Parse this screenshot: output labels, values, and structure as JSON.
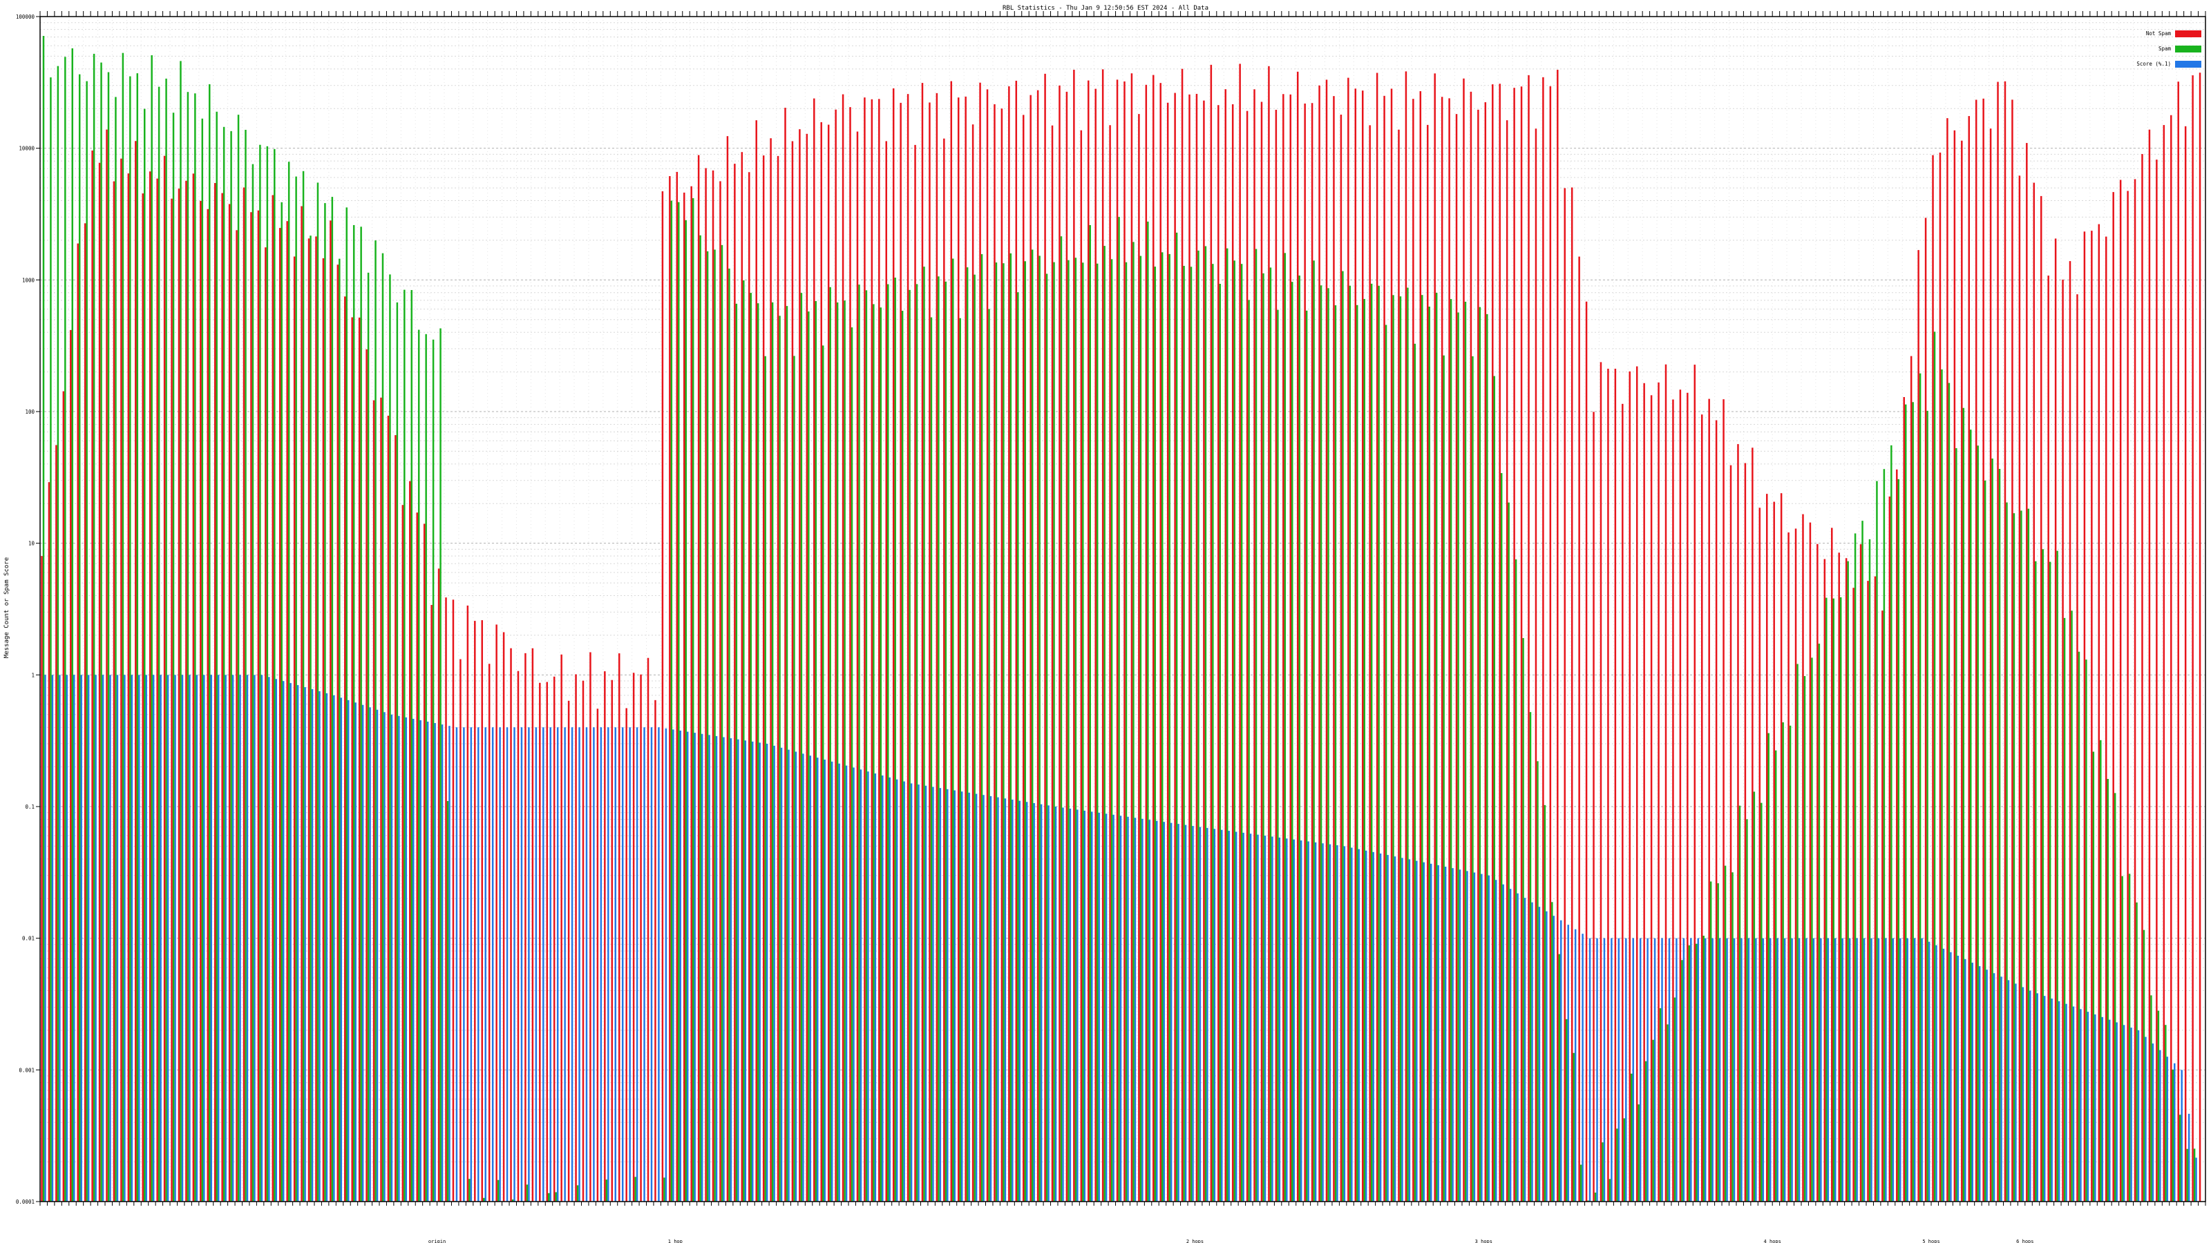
{
  "chart_data": {
    "type": "bar",
    "title": "RBL Statistics - Thu Jan  9 12:50:56 EST 2024 - All Data",
    "ylabel": "Message Count or Spam Score",
    "xlabel": "",
    "yscale": "log",
    "ylim": [
      0.0001,
      100000
    ],
    "yticks": [
      {
        "value": 100000,
        "label": "100000"
      },
      {
        "value": 10000,
        "label": "10000"
      },
      {
        "value": 1000,
        "label": "1000"
      },
      {
        "value": 100,
        "label": "100"
      },
      {
        "value": 10,
        "label": "10"
      },
      {
        "value": 1,
        "label": "1"
      },
      {
        "value": 0.1,
        "label": "0.1"
      },
      {
        "value": 0.01,
        "label": "0.01"
      },
      {
        "value": 0.001,
        "label": "0.001"
      },
      {
        "value": 0.0001,
        "label": "0.0001"
      }
    ],
    "grid": true,
    "legend_position": "top-right",
    "category_count": 300,
    "category_labels_readable": false,
    "category_label_samples": [
      "origin",
      "1 hop",
      "2 hops",
      "3 hops",
      "4 hops",
      "5 hops",
      "6 hops"
    ],
    "series_colors": {
      "not_spam": "#e8141b",
      "spam": "#19b31e",
      "score": "#2277e6"
    },
    "series": [
      {
        "name": "Not Spam",
        "approximate_profile": [
          [
            0,
            8
          ],
          [
            7,
            10000
          ],
          [
            40,
            2000
          ],
          [
            55,
            5
          ],
          [
            57,
            3
          ],
          [
            63,
            2
          ],
          [
            70,
            1
          ],
          [
            85,
            1
          ],
          [
            86,
            5000
          ],
          [
            110,
            20000
          ],
          [
            150,
            30000
          ],
          [
            200,
            25000
          ],
          [
            210,
            30000
          ],
          [
            215,
            200
          ],
          [
            230,
            150
          ],
          [
            240,
            20
          ],
          [
            255,
            5
          ],
          [
            262,
            10000
          ],
          [
            272,
            30000
          ],
          [
            280,
            1000
          ],
          [
            299,
            40000
          ]
        ]
      },
      {
        "name": "Spam",
        "approximate_profile": [
          [
            0,
            50000
          ],
          [
            20,
            30000
          ],
          [
            45,
            2000
          ],
          [
            55,
            300
          ],
          [
            57,
            0.0001
          ],
          [
            86,
            0.0001
          ],
          [
            87,
            5000
          ],
          [
            100,
            500
          ],
          [
            150,
            2000
          ],
          [
            200,
            500
          ],
          [
            214,
            0.0001
          ],
          [
            262,
            300
          ],
          [
            265,
            100
          ],
          [
            280,
            5
          ],
          [
            299,
            0.0001
          ]
        ]
      },
      {
        "name": "Score (%.1)",
        "approximate_profile": [
          [
            0,
            1
          ],
          [
            30,
            1
          ],
          [
            40,
            0.7
          ],
          [
            48,
            0.5
          ],
          [
            57,
            0.4
          ],
          [
            85,
            0.4
          ],
          [
            100,
            0.3
          ],
          [
            120,
            0.15
          ],
          [
            140,
            0.1
          ],
          [
            160,
            0.07
          ],
          [
            180,
            0.05
          ],
          [
            200,
            0.03
          ],
          [
            214,
            0.01
          ],
          [
            260,
            0.01
          ],
          [
            275,
            0.004
          ],
          [
            290,
            0.002
          ],
          [
            296,
            0.001
          ],
          [
            299,
            0.0001
          ]
        ]
      }
    ]
  }
}
